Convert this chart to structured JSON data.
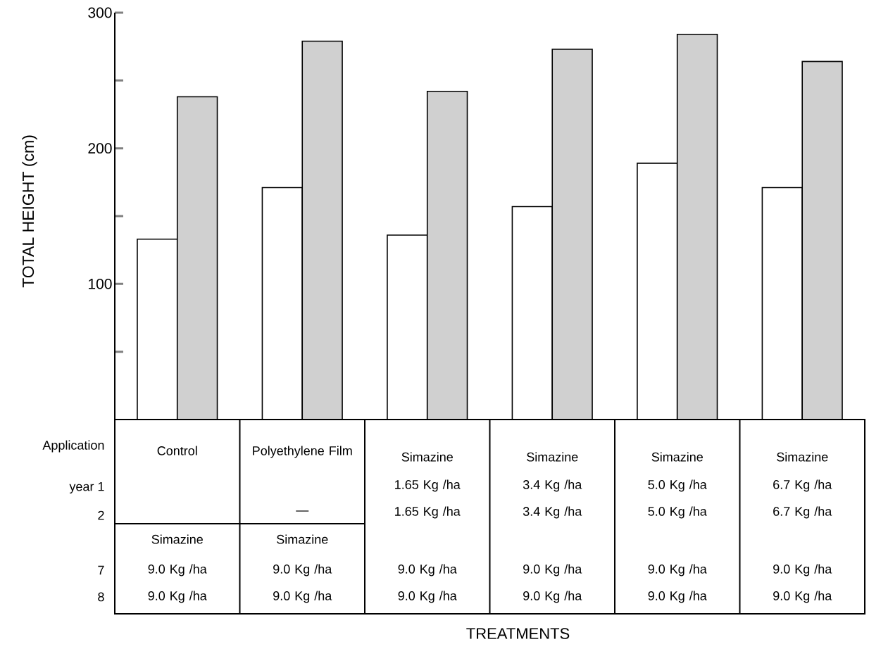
{
  "chart_data": {
    "type": "bar",
    "ylabel": "TOTAL  HEIGHT  (cm)",
    "categories": [
      "Control",
      "Polyethylene Film",
      "Simazine",
      "Simazine",
      "Simazine",
      "Simazine"
    ],
    "series": [
      {
        "color": "#ffffff",
        "values": [
          133,
          171,
          136,
          157,
          189,
          171
        ]
      },
      {
        "color": "#d0d0d0",
        "values": [
          238,
          279,
          242,
          273,
          284,
          264
        ]
      }
    ],
    "ylim": [
      0,
      300
    ],
    "yticks": [
      {
        "value": 50,
        "label": null
      },
      100,
      {
        "value": 150,
        "label": null
      },
      200,
      {
        "value": 250,
        "label": null
      },
      300
    ],
    "tick_labels": "y",
    "annotations": [
      "Application",
      "year 1",
      "2",
      "7",
      "8",
      "1.65 Kg /ha",
      "3.4 Kg /ha",
      "5.0 Kg /ha",
      "6.7 Kg /ha",
      "—",
      "1.65 Kg /ha",
      "3.4 Kg /ha",
      "5.0 Kg /ha",
      "6.7 Kg /ha",
      "Simazine",
      "Simazine",
      "9.0 Kg /ha",
      "9.0 Kg /ha",
      "9.0 Kg /ha",
      "9.0 Kg /ha",
      "9.0 Kg /ha",
      "9.0 Kg /ha",
      "9.0 Kg /ha",
      "9.0 Kg /ha",
      "9.0 Kg /ha",
      "9.0 Kg /ha",
      "9.0 Kg /ha",
      "9.0 Kg /ha",
      "TREATMENTS"
    ]
  }
}
